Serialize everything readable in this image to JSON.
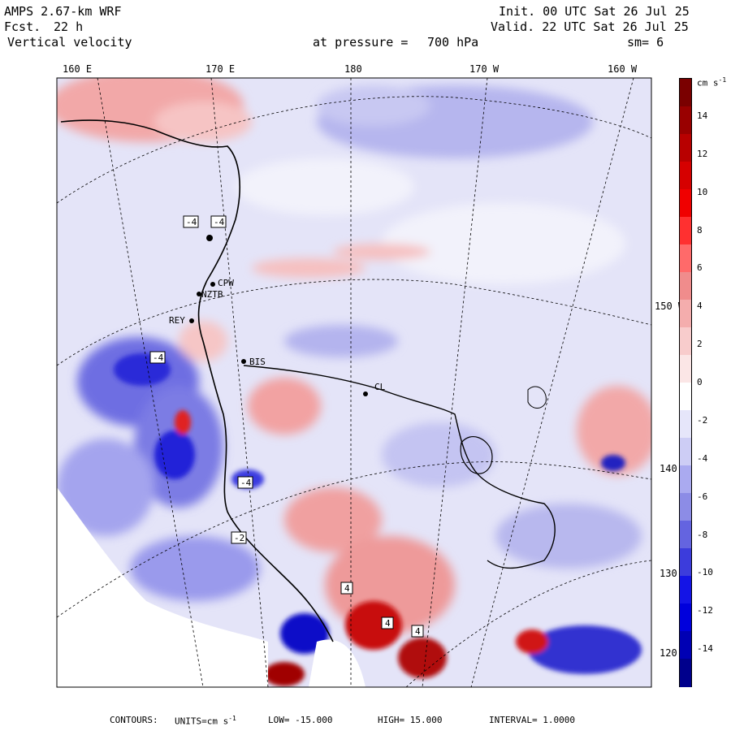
{
  "header": {
    "model": "AMPS 2.67-km WRF",
    "forecast_label": "Fcst.",
    "forecast_value": "22 h",
    "field": "Vertical velocity",
    "pressure_label": "at pressure =",
    "pressure_value": "700 hPa",
    "init": "Init. 00 UTC Sat 26 Jul 25",
    "valid": "Valid. 22 UTC Sat 26 Jul 25",
    "smoothing": "sm= 6"
  },
  "longitude_labels": [
    "160 E",
    "170 E",
    "180",
    "170 W",
    "160 W"
  ],
  "latitude_labels": [
    "150 W",
    "140 W",
    "130 W",
    "120 W"
  ],
  "stations": [
    "CPW",
    "NZTB",
    "REY",
    "BIS",
    "CL"
  ],
  "map_labels": [
    "-4",
    "-4",
    "-4",
    "-4",
    "-2",
    "4",
    "4",
    "4"
  ],
  "colorbar": {
    "units": "cm s",
    "units_exp": "-1",
    "ticks": [
      "14",
      "12",
      "10",
      "8",
      "6",
      "4",
      "2",
      "0",
      "-2",
      "-4",
      "-6",
      "-8",
      "-10",
      "-12",
      "-14"
    ],
    "colors": [
      "#7a0000",
      "#990000",
      "#b80000",
      "#d60000",
      "#f00000",
      "#ff3030",
      "#ff6a6a",
      "#f08c8c",
      "#f4adad",
      "#f8cccc",
      "#fbe6e6",
      "#ffffff",
      "#e6e6fa",
      "#cdcdf5",
      "#aaaaf0",
      "#8c8ce6",
      "#6464e0",
      "#3c3cdc",
      "#1414e6",
      "#0000dc",
      "#0000b4",
      "#00008c"
    ]
  },
  "footer": {
    "contours_label": "CONTOURS:",
    "units_label": "UNITS=cm s",
    "units_exp": "-1",
    "low": "LOW= -15.000",
    "high": "HIGH= 15.000",
    "interval": "INTERVAL= 1.0000"
  }
}
